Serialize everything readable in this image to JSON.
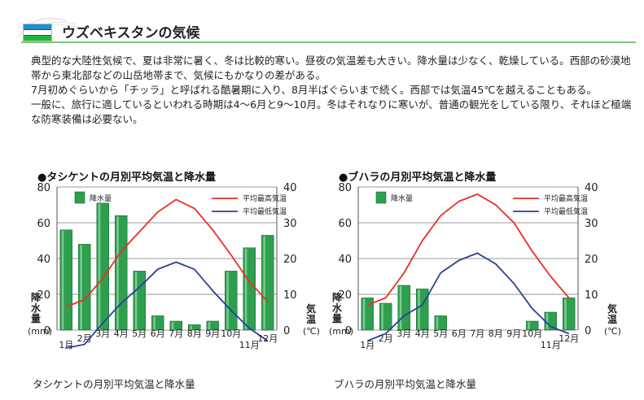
{
  "page": {
    "title": "ウズベキスタンの気候",
    "paragraphs": [
      "典型的な大陸性気候で、夏は非常に暑く、冬は比較的寒い。昼夜の気温差も大きい。降水量は少なく、乾燥している。西部の砂漠地帯から東北部などの山岳地帯まで、気候にもかなりの差がある。",
      "7月初めぐらいから「チッラ」と呼ばれる酷暑期に入り、8月半ばぐらいまで続く。西部では気温45℃を越えることもある。",
      "一般に、旅行に適しているといわれる時期は4〜6月と9〜10月。冬はそれなりに寒いが、普通の観光をしている限り、それほど極端な防寒装備は必要ない。"
    ]
  },
  "colors": {
    "bar": "#2e9e4f",
    "max_line": "#e8302a",
    "min_line": "#2a3f9c",
    "flag_blue": "#1e8fcf",
    "flag_green": "#1eb53a",
    "rule": "#7fc27f"
  },
  "chart_data": [
    {
      "type": "bar",
      "title": "●タシケントの月別平均気温と降水量",
      "caption": "タシケントの月別平均気温と降水量",
      "categories": [
        "1月",
        "2月",
        "3月",
        "4月",
        "5月",
        "6月",
        "7月",
        "8月",
        "9月",
        "10月",
        "11月",
        "12月"
      ],
      "left_axis": {
        "label_chars": [
          "降",
          "水",
          "量"
        ],
        "unit": "(mm)",
        "ticks": [
          0,
          20,
          40,
          60,
          80
        ],
        "ylim": [
          0,
          80
        ]
      },
      "right_axis": {
        "label_chars": [
          "気",
          "温"
        ],
        "unit": "(℃)",
        "ticks": [
          0,
          10,
          20,
          30,
          40
        ],
        "ylim": [
          0,
          40
        ]
      },
      "legend": {
        "bar": "降水量",
        "max": "平均最高気温",
        "min": "平均最低気温"
      },
      "series": [
        {
          "name": "降水量",
          "kind": "bar",
          "axis": "left",
          "values": [
            56,
            48,
            71,
            64,
            33,
            8,
            5,
            3,
            5,
            33,
            46,
            53
          ]
        },
        {
          "name": "平均最高気温",
          "kind": "line",
          "axis": "right",
          "values": [
            6.5,
            8.5,
            14.5,
            22,
            27.5,
            33,
            36.5,
            34,
            28,
            21,
            13.5,
            8
          ]
        },
        {
          "name": "平均最低気温",
          "kind": "line",
          "axis": "right",
          "values": [
            -5,
            -4,
            2,
            7.5,
            12,
            17,
            19,
            17,
            11,
            5.5,
            0.5,
            -3
          ]
        }
      ],
      "grid": true,
      "legend_position": "top"
    },
    {
      "type": "bar",
      "title": "●ブハラの月別平均気温と降水量",
      "caption": "ブハラの月別平均気温と降水量",
      "categories": [
        "1月",
        "2月",
        "3月",
        "4月",
        "5月",
        "6月",
        "7月",
        "8月",
        "9月",
        "10月",
        "11月",
        "12月"
      ],
      "left_axis": {
        "label_chars": [
          "降",
          "水",
          "量"
        ],
        "unit": "(mm)",
        "ticks": [
          0,
          20,
          40,
          60,
          80
        ],
        "ylim": [
          0,
          80
        ]
      },
      "right_axis": {
        "label_chars": [
          "気",
          "温"
        ],
        "unit": "(℃)",
        "ticks": [
          0,
          10,
          20,
          30,
          40
        ],
        "ylim": [
          0,
          40
        ]
      },
      "legend": {
        "bar": "降水量",
        "max": "平均最高気温",
        "min": "平均最低気温"
      },
      "series": [
        {
          "name": "降水量",
          "kind": "bar",
          "axis": "left",
          "values": [
            18,
            15,
            25,
            23,
            8,
            0,
            0,
            0,
            0,
            5,
            10,
            18
          ]
        },
        {
          "name": "平均最高気温",
          "kind": "line",
          "axis": "right",
          "values": [
            7,
            9,
            16,
            25,
            32,
            36,
            38,
            35,
            30,
            22,
            15,
            9
          ]
        },
        {
          "name": "平均最低気温",
          "kind": "line",
          "axis": "right",
          "values": [
            -3,
            -1,
            4,
            7,
            16,
            19.5,
            21.5,
            18.5,
            13,
            6,
            1,
            -1
          ]
        }
      ],
      "grid": true,
      "legend_position": "top"
    }
  ]
}
